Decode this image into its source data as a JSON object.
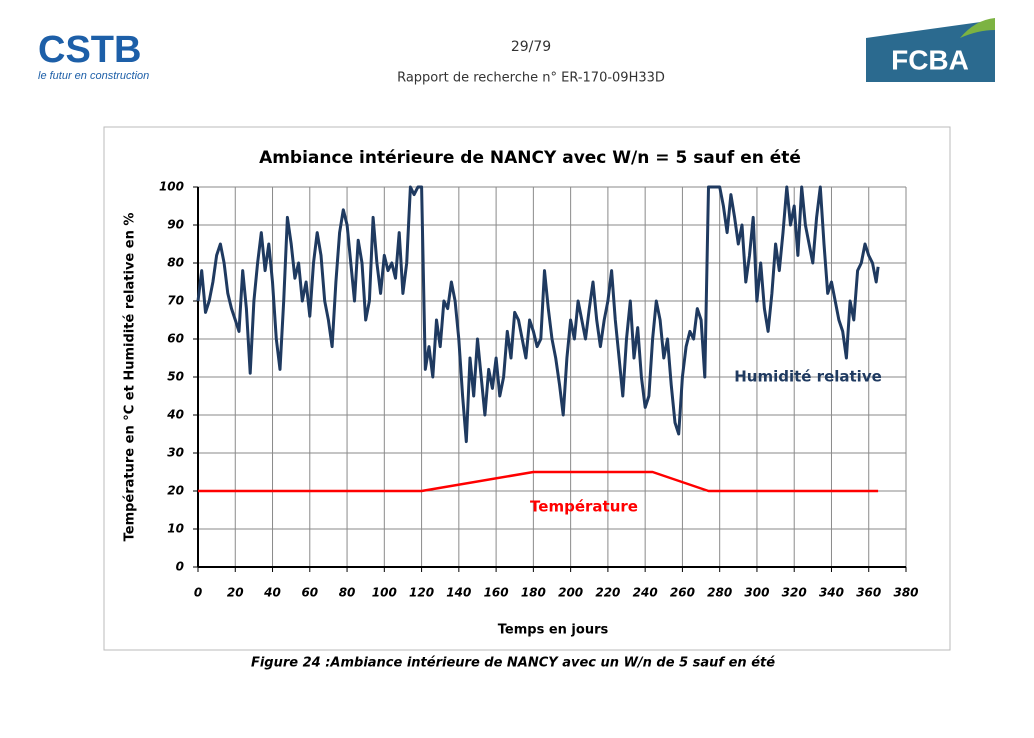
{
  "header": {
    "logo_left": "CSTB",
    "logo_left_tagline": "le futur en construction",
    "page": "29/79",
    "report": "Rapport de recherche n° ER-170-09H33D",
    "logo_right": "FCBA"
  },
  "caption": "Figure 24 :Ambiance intérieure de NANCY avec un W/n de 5 sauf en été",
  "chart_data": {
    "type": "line",
    "title": "Ambiance intérieure de NANCY avec W/n = 5 sauf en été",
    "xlabel": "Temps en jours",
    "ylabel": "Température en °C et Humidité relative en %",
    "xlim": [
      0,
      380
    ],
    "xticks": [
      0,
      20,
      40,
      60,
      80,
      100,
      120,
      140,
      160,
      180,
      200,
      220,
      240,
      260,
      280,
      300,
      320,
      340,
      360,
      380
    ],
    "ylim": [
      0,
      100
    ],
    "yticks": [
      0,
      10,
      20,
      30,
      40,
      50,
      60,
      70,
      80,
      90,
      100
    ],
    "grid": true,
    "series": [
      {
        "name": "Humidité relative",
        "color": "#1f3a60",
        "x": [
          0,
          2,
          4,
          6,
          8,
          10,
          12,
          14,
          16,
          18,
          20,
          22,
          24,
          26,
          28,
          30,
          32,
          34,
          36,
          38,
          40,
          42,
          44,
          46,
          48,
          50,
          52,
          54,
          56,
          58,
          60,
          62,
          64,
          66,
          68,
          70,
          72,
          74,
          76,
          78,
          80,
          82,
          84,
          86,
          88,
          90,
          92,
          94,
          96,
          98,
          100,
          102,
          104,
          106,
          108,
          110,
          112,
          114,
          116,
          118,
          120,
          122,
          124,
          126,
          128,
          130,
          132,
          134,
          136,
          138,
          140,
          142,
          144,
          146,
          148,
          150,
          152,
          154,
          156,
          158,
          160,
          162,
          164,
          166,
          168,
          170,
          172,
          174,
          176,
          178,
          180,
          182,
          184,
          186,
          188,
          190,
          192,
          194,
          196,
          198,
          200,
          202,
          204,
          206,
          208,
          210,
          212,
          214,
          216,
          218,
          220,
          222,
          224,
          226,
          228,
          230,
          232,
          234,
          236,
          238,
          240,
          242,
          244,
          246,
          248,
          250,
          252,
          254,
          256,
          258,
          260,
          262,
          264,
          266,
          268,
          270,
          272,
          274,
          276,
          278,
          280,
          282,
          284,
          286,
          288,
          290,
          292,
          294,
          296,
          298,
          300,
          302,
          304,
          306,
          308,
          310,
          312,
          314,
          316,
          318,
          320,
          322,
          324,
          326,
          328,
          330,
          332,
          334,
          336,
          338,
          340,
          342,
          344,
          346,
          348,
          350,
          352,
          354,
          356,
          358,
          360,
          362,
          364,
          365
        ],
        "values": [
          70,
          78,
          67,
          70,
          75,
          82,
          85,
          80,
          72,
          68,
          65,
          62,
          78,
          68,
          51,
          70,
          80,
          88,
          78,
          85,
          75,
          60,
          52,
          70,
          92,
          85,
          76,
          80,
          70,
          75,
          66,
          80,
          88,
          82,
          70,
          65,
          58,
          75,
          88,
          94,
          90,
          80,
          70,
          86,
          80,
          65,
          70,
          92,
          80,
          72,
          82,
          78,
          80,
          76,
          88,
          72,
          80,
          100,
          98,
          100,
          100,
          52,
          58,
          50,
          65,
          58,
          70,
          68,
          75,
          70,
          60,
          45,
          33,
          55,
          45,
          60,
          50,
          40,
          52,
          47,
          55,
          45,
          50,
          62,
          55,
          67,
          65,
          60,
          55,
          65,
          62,
          58,
          60,
          78,
          68,
          60,
          55,
          48,
          40,
          55,
          65,
          60,
          70,
          65,
          60,
          68,
          75,
          65,
          58,
          65,
          70,
          78,
          65,
          55,
          45,
          60,
          70,
          55,
          63,
          50,
          42,
          45,
          60,
          70,
          65,
          55,
          60,
          48,
          38,
          35,
          50,
          58,
          62,
          60,
          68,
          65,
          50,
          100,
          100,
          100,
          100,
          95,
          88,
          98,
          92,
          85,
          90,
          75,
          82,
          92,
          70,
          80,
          68,
          62,
          72,
          85,
          78,
          88,
          100,
          90,
          95,
          82,
          100,
          90,
          85,
          80,
          92,
          100,
          85,
          72,
          75,
          70,
          65,
          62,
          55,
          70,
          65,
          78,
          80,
          85,
          82,
          80,
          75,
          79
        ]
      },
      {
        "name": "Température",
        "color": "#ff0000",
        "x": [
          0,
          120,
          180,
          244,
          274,
          365
        ],
        "values": [
          20,
          20,
          25,
          25,
          20,
          20
        ]
      }
    ]
  }
}
